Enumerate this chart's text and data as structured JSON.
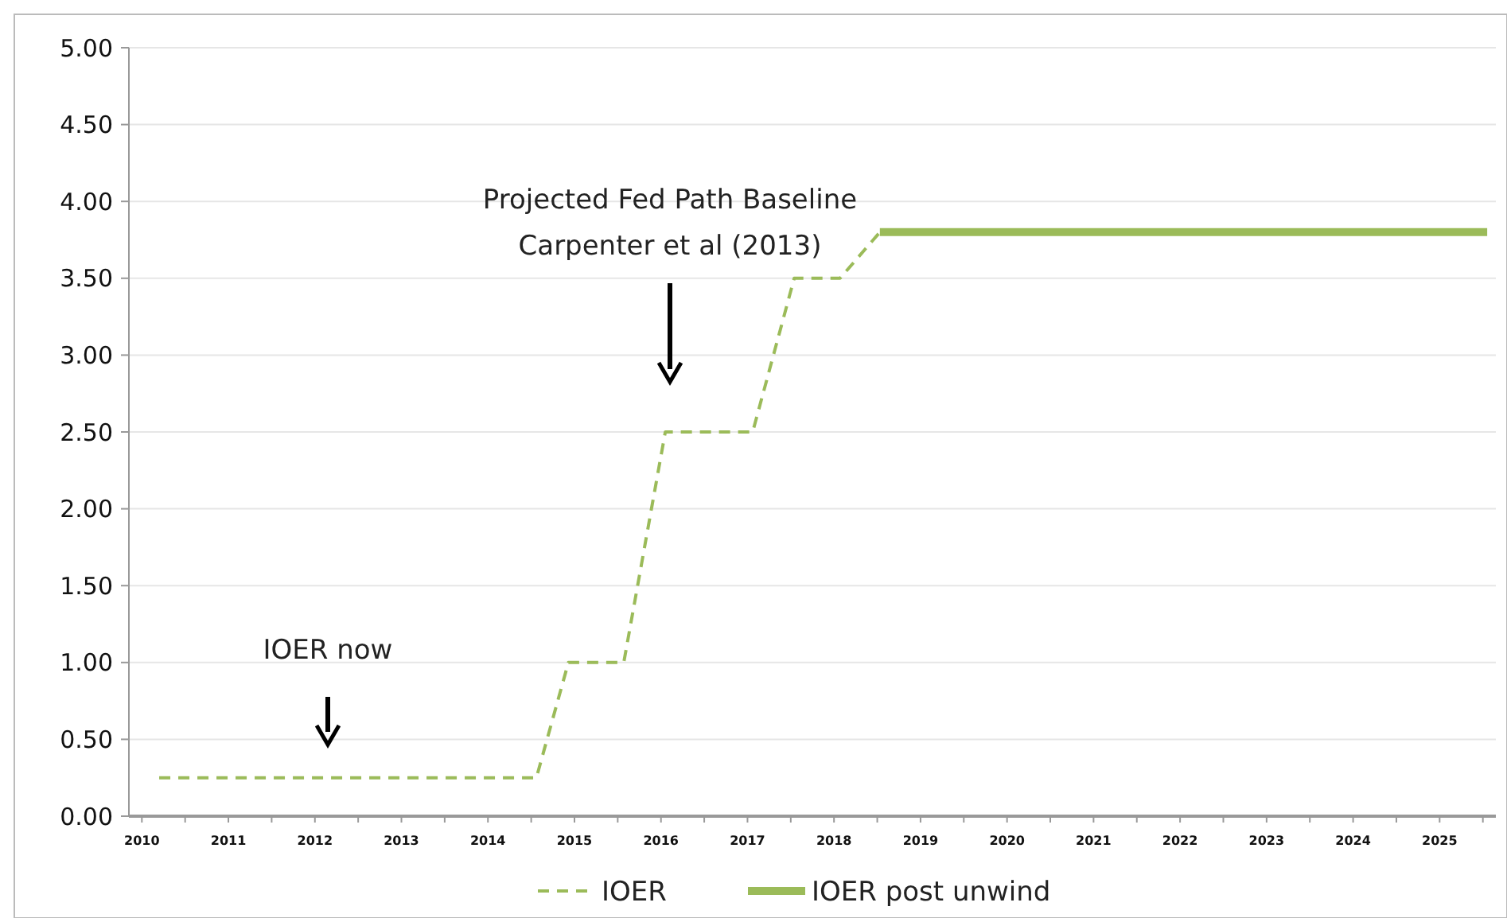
{
  "chart_data": {
    "type": "line",
    "x": [
      2010.2,
      2014.56,
      2014.93,
      2015.57,
      2016.05,
      2017.06,
      2017.54,
      2018.07,
      2018.53
    ],
    "series": [
      {
        "name": "IOER",
        "color": "#9bbb59",
        "line_style": "dashed",
        "values": [
          0.25,
          0.25,
          1.0,
          1.0,
          2.5,
          2.5,
          3.5,
          3.5,
          3.8
        ]
      },
      {
        "name": "IOER post unwind",
        "color": "#9bbb59",
        "line_style": "solid",
        "x": [
          2018.53,
          2025.55
        ],
        "values": [
          3.8,
          3.8
        ]
      }
    ],
    "xlim": [
      2009.85,
      2025.65
    ],
    "xticks": [
      {
        "value": 2010,
        "label": "2010"
      },
      {
        "value": 2010.5,
        "label": null
      },
      {
        "value": 2011,
        "label": "2011"
      },
      {
        "value": 2011.5,
        "label": null
      },
      {
        "value": 2012,
        "label": "2012"
      },
      {
        "value": 2012.5,
        "label": null
      },
      {
        "value": 2013,
        "label": "2013"
      },
      {
        "value": 2013.5,
        "label": null
      },
      {
        "value": 2014,
        "label": "2014"
      },
      {
        "value": 2014.5,
        "label": null
      },
      {
        "value": 2015,
        "label": "2015"
      },
      {
        "value": 2015.5,
        "label": null
      },
      {
        "value": 2016,
        "label": "2016"
      },
      {
        "value": 2016.5,
        "label": null
      },
      {
        "value": 2017,
        "label": "2017"
      },
      {
        "value": 2017.5,
        "label": null
      },
      {
        "value": 2018,
        "label": "2018"
      },
      {
        "value": 2018.5,
        "label": null
      },
      {
        "value": 2019,
        "label": "2019"
      },
      {
        "value": 2019.5,
        "label": null
      },
      {
        "value": 2020,
        "label": "2020"
      },
      {
        "value": 2020.5,
        "label": null
      },
      {
        "value": 2021,
        "label": "2021"
      },
      {
        "value": 2021.5,
        "label": null
      },
      {
        "value": 2022,
        "label": "2022"
      },
      {
        "value": 2022.5,
        "label": null
      },
      {
        "value": 2023,
        "label": "2023"
      },
      {
        "value": 2023.5,
        "label": null
      },
      {
        "value": 2024,
        "label": "2024"
      },
      {
        "value": 2024.5,
        "label": null
      },
      {
        "value": 2025,
        "label": "2025"
      },
      {
        "value": 2025.5,
        "label": null
      }
    ],
    "ylim": [
      0,
      5
    ],
    "yticks": [
      {
        "value": 0,
        "label": "0.00"
      },
      {
        "value": 0.5,
        "label": "0.50"
      },
      {
        "value": 1,
        "label": "1.00"
      },
      {
        "value": 1.5,
        "label": "1.50"
      },
      {
        "value": 2,
        "label": "2.00"
      },
      {
        "value": 2.5,
        "label": "2.50"
      },
      {
        "value": 3,
        "label": "3.00"
      },
      {
        "value": 3.5,
        "label": "3.50"
      },
      {
        "value": 4,
        "label": "4.00"
      },
      {
        "value": 4.5,
        "label": "4.50"
      },
      {
        "value": 5,
        "label": "5.00"
      }
    ],
    "grid": "y",
    "legend": "bottom",
    "annotations": [
      "IOER now",
      "Projected Fed Path Baseline\nCarpenter et al (2013)"
    ]
  }
}
